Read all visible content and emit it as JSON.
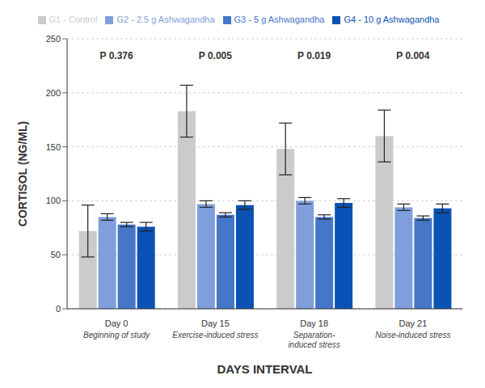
{
  "chart_data": {
    "type": "bar",
    "x_label": "DAYS INTERVAL",
    "y_label": "CORTISOL (NG/ML)",
    "categories": [
      "Day 0",
      "Day 15",
      "Day 18",
      "Day 21"
    ],
    "category_subtitles": [
      "Beginning of study",
      "Exercise-induced stress",
      "Separation-induced stress",
      "Noise-induced stress"
    ],
    "series": [
      {
        "name": "G1 - Control",
        "color": "#cbcbcb",
        "values": [
          72,
          183,
          148,
          160
        ],
        "errors": [
          24,
          24,
          24,
          24
        ]
      },
      {
        "name": "G2 - 2.5 g Ashwagandha",
        "color": "#7f9edb",
        "values": [
          85,
          97,
          100,
          94
        ],
        "errors": [
          3,
          3,
          3,
          3
        ]
      },
      {
        "name": "G3 - 5 g Ashwagandha",
        "color": "#4676c8",
        "values": [
          78,
          87,
          85,
          84
        ],
        "errors": [
          2,
          2,
          2,
          2
        ]
      },
      {
        "name": "G4 - 10 g Ashwagandha",
        "color": "#0a52b3",
        "values": [
          76,
          96,
          98,
          93
        ],
        "errors": [
          4,
          4,
          4,
          4
        ]
      }
    ],
    "annotations": [
      {
        "category": "Day 0",
        "label": "P",
        "value": 0.376
      },
      {
        "category": "Day 15",
        "label": "P",
        "value": 0.005
      },
      {
        "category": "Day 18",
        "label": "P",
        "value": 0.019
      },
      {
        "category": "Day 21",
        "label": "P",
        "value": 0.004
      }
    ],
    "ylim": [
      0,
      250
    ],
    "yticks": [
      0,
      50,
      100,
      150,
      200,
      250
    ],
    "grid": true,
    "legend": "top"
  }
}
